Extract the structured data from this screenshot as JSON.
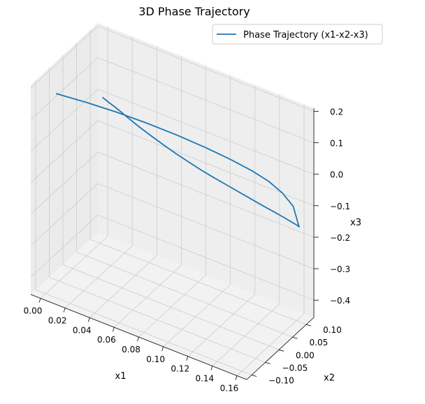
{
  "chart_data": {
    "type": "line",
    "projection": "3d",
    "title": "3D Phase Trajectory",
    "xlabel": "x1",
    "ylabel": "x2",
    "zlabel": "x3",
    "grid": true,
    "legend": {
      "placement": "top-right",
      "entries": [
        "Phase Trajectory (x1-x2-x3)"
      ]
    },
    "xlim": [
      -0.008,
      0.168
    ],
    "ylim": [
      -0.118,
      0.128
    ],
    "zlim": [
      -0.455,
      0.21
    ],
    "xticks": [
      0.0,
      0.02,
      0.04,
      0.06,
      0.08,
      0.1,
      0.12,
      0.14,
      0.16
    ],
    "xtick_labels": [
      "0.00",
      "0.02",
      "0.04",
      "0.06",
      "0.08",
      "0.10",
      "0.12",
      "0.14",
      "0.16"
    ],
    "yticks": [
      -0.1,
      -0.05,
      0.0,
      0.05,
      0.1
    ],
    "ytick_labels": [
      "−0.10",
      "−0.05",
      "0.00",
      "0.05",
      "0.10"
    ],
    "zticks": [
      -0.4,
      -0.3,
      -0.2,
      -0.1,
      0.0,
      0.1,
      0.2
    ],
    "ztick_labels": [
      "−0.4",
      "−0.3",
      "−0.2",
      "−0.1",
      "0.0",
      "0.1",
      "0.2"
    ],
    "series": [
      {
        "name": "Phase Trajectory (x1-x2-x3)",
        "color": "#1f77b4",
        "x": [
          0.0,
          0.005,
          0.01,
          0.015,
          0.02,
          0.03,
          0.04,
          0.05,
          0.06,
          0.07,
          0.08,
          0.09,
          0.1,
          0.11,
          0.12,
          0.13,
          0.14,
          0.15,
          0.155,
          0.158,
          0.16,
          0.1585,
          0.154,
          0.147,
          0.138,
          0.125,
          0.11,
          0.09,
          0.07,
          0.05,
          0.03,
          0.01
        ],
        "y": [
          0.11,
          0.11,
          0.11,
          0.11,
          0.11,
          0.11,
          0.11,
          0.11,
          0.11,
          0.11,
          0.11,
          0.11,
          0.11,
          0.11,
          0.11,
          0.11,
          0.11,
          0.11,
          0.11,
          0.11,
          0.11,
          0.095,
          0.075,
          0.055,
          0.035,
          0.015,
          -0.005,
          -0.025,
          -0.045,
          -0.065,
          -0.085,
          -0.105
        ],
        "z": [
          0.0,
          -0.008,
          -0.015,
          -0.023,
          -0.032,
          -0.048,
          -0.062,
          -0.075,
          -0.087,
          -0.097,
          -0.107,
          -0.115,
          -0.122,
          -0.129,
          -0.136,
          -0.143,
          -0.149,
          -0.156,
          -0.16,
          -0.162,
          -0.165,
          -0.09,
          -0.038,
          0.005,
          0.04,
          0.072,
          0.101,
          0.128,
          0.151,
          0.171,
          0.187,
          0.2
        ]
      }
    ]
  }
}
